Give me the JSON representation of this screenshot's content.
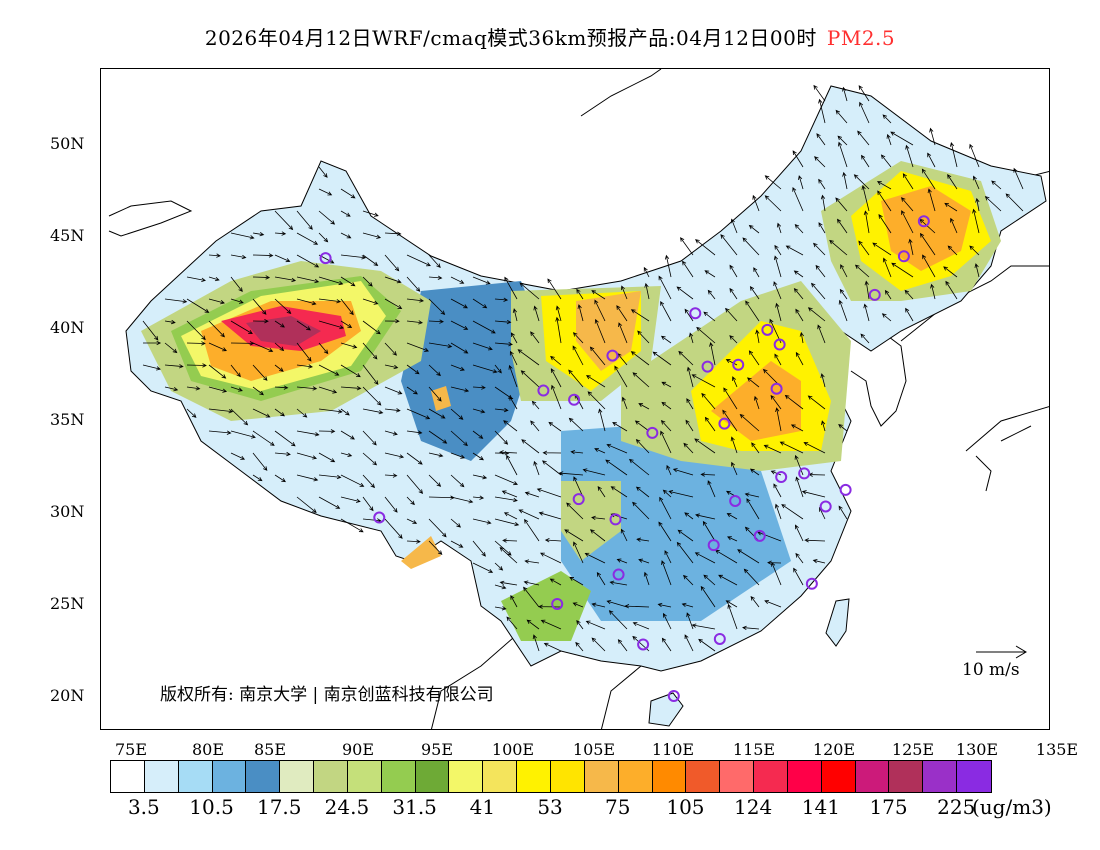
{
  "title": {
    "text": "2026年04月12日WRF/cmaq模式36km预报产品:04月12日00时",
    "variable": "PM2.5",
    "variable_color": "#ff3030"
  },
  "axes": {
    "lat_labels": [
      "50N",
      "45N",
      "40N",
      "35N",
      "30N",
      "25N",
      "20N"
    ],
    "lon_labels": [
      "75E",
      "80E",
      "85E",
      "90E",
      "95E",
      "100E",
      "105E",
      "110E",
      "115E",
      "120E",
      "125E",
      "130E",
      "135E"
    ]
  },
  "colorbar": {
    "colors": [
      "#ffffff",
      "#d6eefa",
      "#a6dcf5",
      "#6cb2e0",
      "#4a8ec4",
      "#e0ebc0",
      "#c2d682",
      "#c5e07a",
      "#94cc50",
      "#6eaa36",
      "#f3f768",
      "#f4e45c",
      "#fff200",
      "#ffe400",
      "#f6b84a",
      "#fdae2a",
      "#ff8a00",
      "#f05a2a",
      "#ff6a6a",
      "#f52a50",
      "#ff0048",
      "#ff0000",
      "#cc1a7a",
      "#b0305a",
      "#9a30c8",
      "#8a2be2"
    ],
    "labels": [
      "3.5",
      "10.5",
      "17.5",
      "24.5",
      "31.5",
      "41",
      "53",
      "75",
      "105",
      "124",
      "141",
      "175",
      "225"
    ],
    "unit": "(ug/m3)"
  },
  "copyright": "版权所有: 南京大学 | 南京创蓝科技有限公司",
  "wind_legend": {
    "label": "10 m/s"
  },
  "cities_lonlat": [
    [
      87.6,
      43.8
    ],
    [
      91.1,
      29.7
    ],
    [
      101.8,
      36.6
    ],
    [
      103.8,
      36.1
    ],
    [
      106.3,
      38.5
    ],
    [
      104.1,
      30.7
    ],
    [
      106.5,
      29.6
    ],
    [
      102.7,
      25.0
    ],
    [
      106.7,
      26.6
    ],
    [
      108.3,
      22.8
    ],
    [
      110.3,
      20.0
    ],
    [
      113.3,
      23.1
    ],
    [
      112.9,
      28.2
    ],
    [
      115.9,
      28.7
    ],
    [
      114.3,
      30.6
    ],
    [
      117.3,
      31.9
    ],
    [
      118.8,
      32.1
    ],
    [
      120.2,
      30.3
    ],
    [
      121.5,
      31.2
    ],
    [
      119.3,
      26.1
    ],
    [
      113.6,
      34.8
    ],
    [
      117.0,
      36.7
    ],
    [
      114.5,
      38.0
    ],
    [
      112.5,
      37.9
    ],
    [
      111.7,
      40.8
    ],
    [
      116.4,
      39.9
    ],
    [
      117.2,
      39.1
    ],
    [
      108.9,
      34.3
    ],
    [
      123.4,
      41.8
    ],
    [
      125.3,
      43.9
    ],
    [
      126.6,
      45.8
    ]
  ]
}
